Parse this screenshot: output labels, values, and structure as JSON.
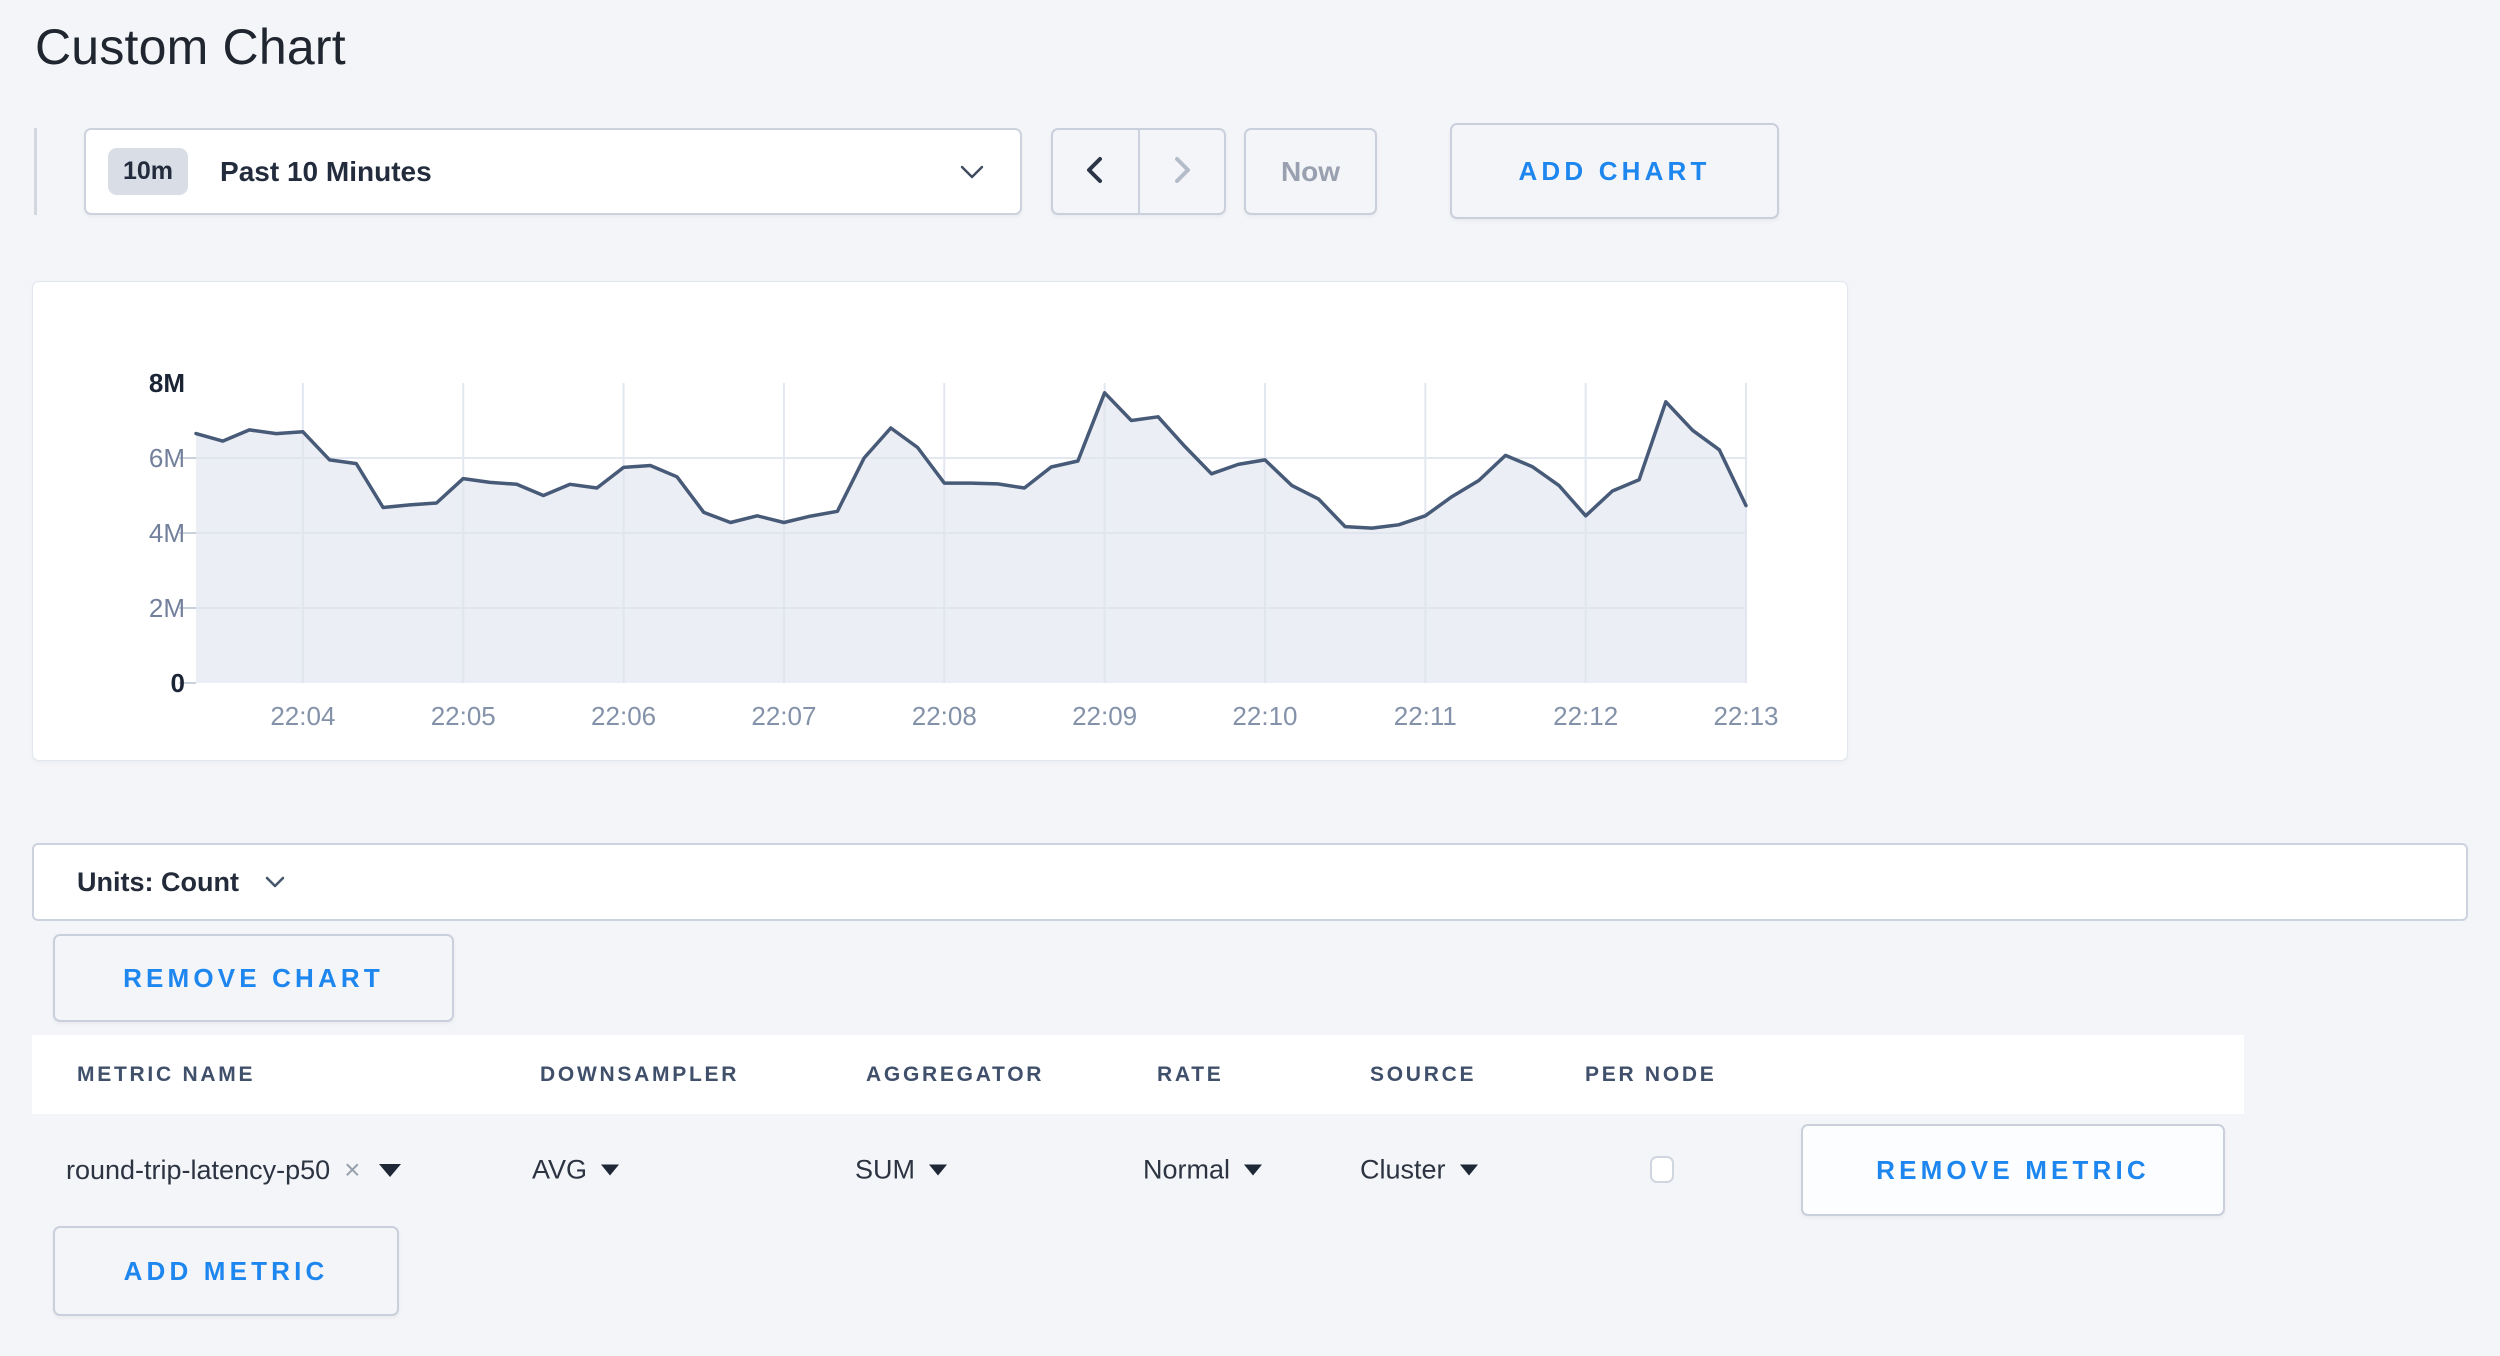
{
  "page": {
    "title": "Custom Chart"
  },
  "toolbar": {
    "time_window": {
      "badge": "10m",
      "label": "Past 10 Minutes"
    },
    "now_label": "Now",
    "add_chart_label": "ADD CHART"
  },
  "chart_card": {
    "units_label": "Units: Count",
    "remove_chart_label": "REMOVE CHART"
  },
  "metrics_table": {
    "columns": [
      "METRIC NAME",
      "DOWNSAMPLER",
      "AGGREGATOR",
      "RATE",
      "SOURCE",
      "PER NODE"
    ],
    "rows": [
      {
        "metric_name": "round-trip-latency-p50",
        "downsampler": "AVG",
        "aggregator": "SUM",
        "rate": "Normal",
        "source": "Cluster",
        "per_node_checked": false,
        "remove_label": "REMOVE METRIC"
      }
    ],
    "add_metric_label": "ADD METRIC"
  },
  "chart_data": {
    "type": "area",
    "title": "",
    "xlabel": "",
    "ylabel": "Count",
    "legend": false,
    "grid": true,
    "ylim": [
      0,
      8000000
    ],
    "y_ticks": [
      {
        "label": "8M",
        "value_millions": 8,
        "emphasis": true
      },
      {
        "label": "6M",
        "value_millions": 6,
        "emphasis": false
      },
      {
        "label": "4M",
        "value_millions": 4,
        "emphasis": false
      },
      {
        "label": "2M",
        "value_millions": 2,
        "emphasis": false
      },
      {
        "label": "0",
        "value_millions": 0,
        "emphasis": true
      }
    ],
    "x_start": "22:03:20",
    "x_interval_seconds": 10,
    "x_tick_labels": [
      "22:04",
      "22:05",
      "22:06",
      "22:07",
      "22:08",
      "22:09",
      "22:10",
      "22:11",
      "22:12",
      "22:13"
    ],
    "series": [
      {
        "name": "round-trip-latency-p50",
        "unit": "count (millions)",
        "values_millions": [
          6.65,
          6.45,
          6.75,
          6.65,
          6.7,
          5.95,
          5.85,
          4.68,
          4.75,
          4.8,
          5.45,
          5.35,
          5.3,
          5.0,
          5.3,
          5.2,
          5.75,
          5.8,
          5.5,
          4.55,
          4.28,
          4.46,
          4.28,
          4.45,
          4.58,
          6.0,
          6.8,
          6.28,
          5.33,
          5.33,
          5.31,
          5.2,
          5.76,
          5.92,
          7.74,
          7.0,
          7.1,
          6.31,
          5.58,
          5.83,
          5.95,
          5.27,
          4.91,
          4.17,
          4.13,
          4.22,
          4.46,
          4.97,
          5.4,
          6.07,
          5.77,
          5.27,
          4.46,
          5.12,
          5.42,
          7.5,
          6.74,
          6.22,
          4.73
        ]
      }
    ],
    "colors": {
      "line": "#475a77",
      "fill": "rgba(222,228,238,0.62)",
      "gridline": "#e3e8f0",
      "tick": "#c9d1dd",
      "y_label_major": "#1b2434",
      "y_label_minor": "#72809b",
      "x_label": "#8392a9"
    }
  },
  "colors": {
    "accent_blue": "#1e87ef",
    "page_bg": "#f4f5f8",
    "dark_text": "#232c3d",
    "muted_text": "#99a1b0"
  }
}
